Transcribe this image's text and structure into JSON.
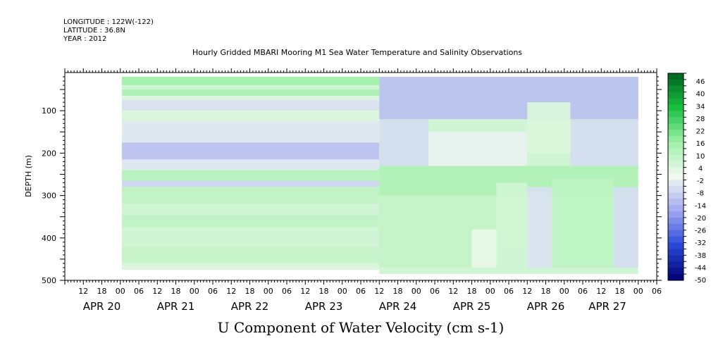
{
  "header": {
    "longitude": "LONGITUDE : 122W(-122)",
    "latitude": "LATITUDE : 36.8N",
    "year": "YEAR : 2012",
    "title": "Hourly Gridded MBARI Mooring M1 Sea Water Temperature and Salinity Observations"
  },
  "chart_data": {
    "type": "heatmap",
    "title": "Hourly Gridded MBARI Mooring M1 Sea Water Temperature and Salinity Observations",
    "xlabel": "",
    "ylabel": "DEPTH (m)",
    "colorbar_label": "U Component of Water Velocity (cm s-1)",
    "ylim": [
      500,
      10
    ],
    "y_ticks": [
      100,
      200,
      300,
      400,
      500
    ],
    "x_hour_ticks": [
      "12",
      "18",
      "00",
      "06",
      "12",
      "18",
      "00",
      "06",
      "12",
      "18",
      "00",
      "06",
      "12",
      "18",
      "00",
      "06",
      "12",
      "18",
      "00",
      "06",
      "12",
      "18",
      "00",
      "06",
      "12",
      "18",
      "00",
      "06",
      "12",
      "18",
      "00",
      "06"
    ],
    "x_day_labels": [
      "APR 20",
      "APR 21",
      "APR 22",
      "APR 23",
      "APR 24",
      "APR 25",
      "APR 26",
      "APR 27"
    ],
    "data_start_hour": 12,
    "interpolation_start_hour": 102,
    "data_end_hour": 186,
    "data_depth_range": [
      20,
      475
    ],
    "colorbar_levels": [
      -50,
      -47,
      -44,
      -41,
      -38,
      -35,
      -32,
      -29,
      -26,
      -23,
      -20,
      -17,
      -14,
      -11,
      -8,
      -5,
      -2,
      1,
      4,
      7,
      10,
      13,
      16,
      19,
      22,
      25,
      28,
      31,
      34,
      37,
      40,
      43,
      46,
      49
    ],
    "colorbar_ticks": [
      "46",
      "40",
      "34",
      "28",
      "22",
      "16",
      "10",
      "4",
      "-2",
      "-8",
      "-14",
      "-20",
      "-26",
      "-32",
      "-38",
      "-44",
      "-50"
    ],
    "interpolated_bands": [
      {
        "from": 20,
        "to": 40,
        "value": 15
      },
      {
        "from": 40,
        "to": 50,
        "value": 6
      },
      {
        "from": 50,
        "to": 65,
        "value": 13
      },
      {
        "from": 65,
        "to": 75,
        "value": 4
      },
      {
        "from": 75,
        "to": 100,
        "value": -5
      },
      {
        "from": 100,
        "to": 125,
        "value": 4
      },
      {
        "from": 125,
        "to": 175,
        "value": -4
      },
      {
        "from": 175,
        "to": 215,
        "value": -11
      },
      {
        "from": 215,
        "to": 240,
        "value": -4
      },
      {
        "from": 240,
        "to": 265,
        "value": 11
      },
      {
        "from": 265,
        "to": 280,
        "value": -7
      },
      {
        "from": 280,
        "to": 320,
        "value": 9
      },
      {
        "from": 320,
        "to": 345,
        "value": 6
      },
      {
        "from": 345,
        "to": 375,
        "value": 9
      },
      {
        "from": 375,
        "to": 420,
        "value": 6
      },
      {
        "from": 420,
        "to": 460,
        "value": 8
      },
      {
        "from": 460,
        "to": 475,
        "value": 4
      }
    ],
    "observed_regions": [
      {
        "hours": [
          102,
          186
        ],
        "depths": [
          20,
          120
        ],
        "value": -12
      },
      {
        "hours": [
          150,
          164
        ],
        "depths": [
          80,
          200
        ],
        "value": 4
      },
      {
        "hours": [
          102,
          118
        ],
        "depths": [
          120,
          230
        ],
        "value": -6
      },
      {
        "hours": [
          118,
          150
        ],
        "depths": [
          150,
          240
        ],
        "value": -2
      },
      {
        "hours": [
          164,
          186
        ],
        "depths": [
          120,
          230
        ],
        "value": -6
      },
      {
        "hours": [
          102,
          186
        ],
        "depths": [
          230,
          300
        ],
        "value": 13
      },
      {
        "hours": [
          102,
          140
        ],
        "depths": [
          300,
          470
        ],
        "value": 9
      },
      {
        "hours": [
          140,
          150
        ],
        "depths": [
          270,
          420
        ],
        "value": 6
      },
      {
        "hours": [
          150,
          158
        ],
        "depths": [
          280,
          470
        ],
        "value": -5
      },
      {
        "hours": [
          158,
          178
        ],
        "depths": [
          260,
          470
        ],
        "value": 10
      },
      {
        "hours": [
          178,
          186
        ],
        "depths": [
          280,
          470
        ],
        "value": -6
      },
      {
        "hours": [
          132,
          140
        ],
        "depths": [
          380,
          470
        ],
        "value": 1
      }
    ]
  },
  "colors": {
    "colormap_stops": [
      "#000070",
      "#2848d8",
      "#a0a8f0",
      "#f0f8f0",
      "#a0f0a8",
      "#18c040",
      "#006020"
    ],
    "interp_gap": "#ffffff"
  },
  "footer": {
    "title": "U Component of Water Velocity (cm s-1)"
  }
}
